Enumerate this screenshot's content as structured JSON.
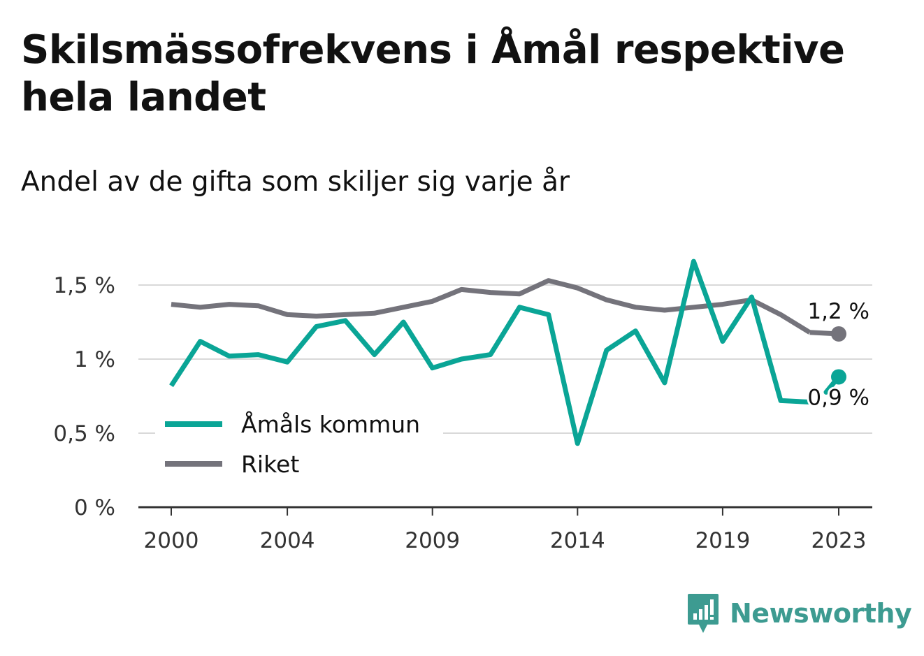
{
  "header": {
    "title": "Skilsmässofrekvens i Åmål respektive hela landet",
    "subtitle": "Andel av de gifta som skiljer sig varje år"
  },
  "brand": {
    "name": "Newsworthy",
    "color": "#3d9b91"
  },
  "colors": {
    "amal": "#0aa596",
    "riket": "#74737b",
    "grid": "#d9d9d9",
    "axis": "#333333"
  },
  "chart_data": {
    "type": "line",
    "ylabel": "",
    "xlabel": "",
    "ylim": [
      0,
      1.75
    ],
    "xlim": [
      1999.5,
      2024.2
    ],
    "yticks": [
      {
        "value": 0,
        "label": "0 %"
      },
      {
        "value": 0.5,
        "label": "0,5 %"
      },
      {
        "value": 1,
        "label": "1 %"
      },
      {
        "value": 1.5,
        "label": "1,5 %"
      }
    ],
    "xticks": [
      {
        "value": 2000,
        "label": "2000"
      },
      {
        "value": 2004,
        "label": "2004"
      },
      {
        "value": 2009,
        "label": "2009"
      },
      {
        "value": 2014,
        "label": "2014"
      },
      {
        "value": 2019,
        "label": "2019"
      },
      {
        "value": 2023,
        "label": "2023"
      }
    ],
    "grid": true,
    "legend_position": "bottom-left",
    "series": [
      {
        "name": "Åmåls kommun",
        "color": "#0aa596",
        "end_label": "0,9 %",
        "points": [
          [
            2000,
            0.82
          ],
          [
            2001,
            1.12
          ],
          [
            2002,
            1.02
          ],
          [
            2003,
            1.03
          ],
          [
            2004,
            0.98
          ],
          [
            2005,
            1.22
          ],
          [
            2006,
            1.26
          ],
          [
            2007,
            1.03
          ],
          [
            2008,
            1.25
          ],
          [
            2009,
            0.94
          ],
          [
            2010,
            1.0
          ],
          [
            2011,
            1.03
          ],
          [
            2012,
            1.35
          ],
          [
            2013,
            1.3
          ],
          [
            2014,
            0.43
          ],
          [
            2015,
            1.06
          ],
          [
            2016,
            1.19
          ],
          [
            2017,
            0.84
          ],
          [
            2018,
            1.66
          ],
          [
            2019,
            1.12
          ],
          [
            2020,
            1.42
          ],
          [
            2021,
            0.72
          ],
          [
            2022,
            0.71
          ],
          [
            2023,
            0.88
          ]
        ]
      },
      {
        "name": "Riket",
        "color": "#74737b",
        "end_label": "1,2 %",
        "points": [
          [
            2000,
            1.37
          ],
          [
            2001,
            1.35
          ],
          [
            2002,
            1.37
          ],
          [
            2003,
            1.36
          ],
          [
            2004,
            1.3
          ],
          [
            2005,
            1.29
          ],
          [
            2006,
            1.3
          ],
          [
            2007,
            1.31
          ],
          [
            2008,
            1.35
          ],
          [
            2009,
            1.39
          ],
          [
            2010,
            1.47
          ],
          [
            2011,
            1.45
          ],
          [
            2012,
            1.44
          ],
          [
            2013,
            1.53
          ],
          [
            2014,
            1.48
          ],
          [
            2015,
            1.4
          ],
          [
            2016,
            1.35
          ],
          [
            2017,
            1.33
          ],
          [
            2018,
            1.35
          ],
          [
            2019,
            1.37
          ],
          [
            2020,
            1.4
          ],
          [
            2021,
            1.3
          ],
          [
            2022,
            1.18
          ],
          [
            2023,
            1.17
          ]
        ]
      }
    ]
  }
}
